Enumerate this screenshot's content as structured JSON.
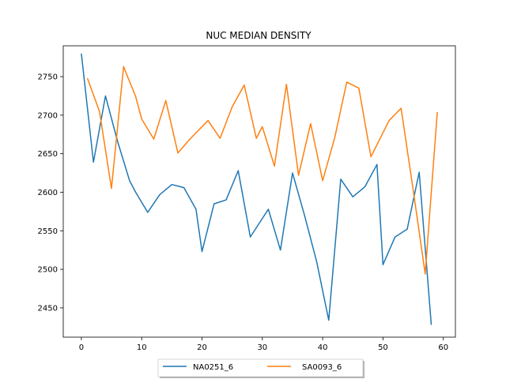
{
  "chart_data": {
    "type": "line",
    "title": "NUC MEDIAN DENSITY",
    "xlabel": "",
    "ylabel": "",
    "xlim": [
      -3,
      62
    ],
    "ylim": [
      2412,
      2790
    ],
    "xticks": [
      0,
      10,
      20,
      30,
      40,
      50,
      60
    ],
    "yticks": [
      2450,
      2500,
      2550,
      2600,
      2650,
      2700,
      2750
    ],
    "grid": false,
    "legend_position": "bottom-center",
    "series": [
      {
        "name": "NA0251_6",
        "color": "#1f77b4",
        "x": [
          0,
          2,
          4,
          6,
          8,
          9,
          11,
          13,
          15,
          17,
          19,
          20,
          22,
          24,
          26,
          28,
          31,
          33,
          35,
          37,
          39,
          41,
          43,
          45,
          47,
          49,
          50,
          52,
          54,
          56,
          58
        ],
        "y": [
          2780,
          2639,
          2725,
          2666,
          2615,
          2600,
          2574,
          2597,
          2610,
          2606,
          2578,
          2523,
          2585,
          2590,
          2628,
          2542,
          2578,
          2525,
          2625,
          2570,
          2510,
          2434,
          2617,
          2594,
          2607,
          2636,
          2506,
          2542,
          2552,
          2626,
          2428
        ]
      },
      {
        "name": "SA0093_6",
        "color": "#ff7f0e",
        "x": [
          1,
          3,
          5,
          7,
          9,
          10,
          12,
          14,
          16,
          18,
          21,
          23,
          25,
          27,
          29,
          30,
          32,
          34,
          36,
          38,
          40,
          42,
          44,
          46,
          48,
          51,
          53,
          55,
          57,
          59
        ],
        "y": [
          2748,
          2705,
          2605,
          2763,
          2724,
          2695,
          2669,
          2719,
          2651,
          2669,
          2693,
          2670,
          2711,
          2739,
          2670,
          2685,
          2634,
          2740,
          2622,
          2689,
          2615,
          2671,
          2743,
          2735,
          2646,
          2693,
          2709,
          2603,
          2494,
          2704
        ]
      }
    ]
  }
}
